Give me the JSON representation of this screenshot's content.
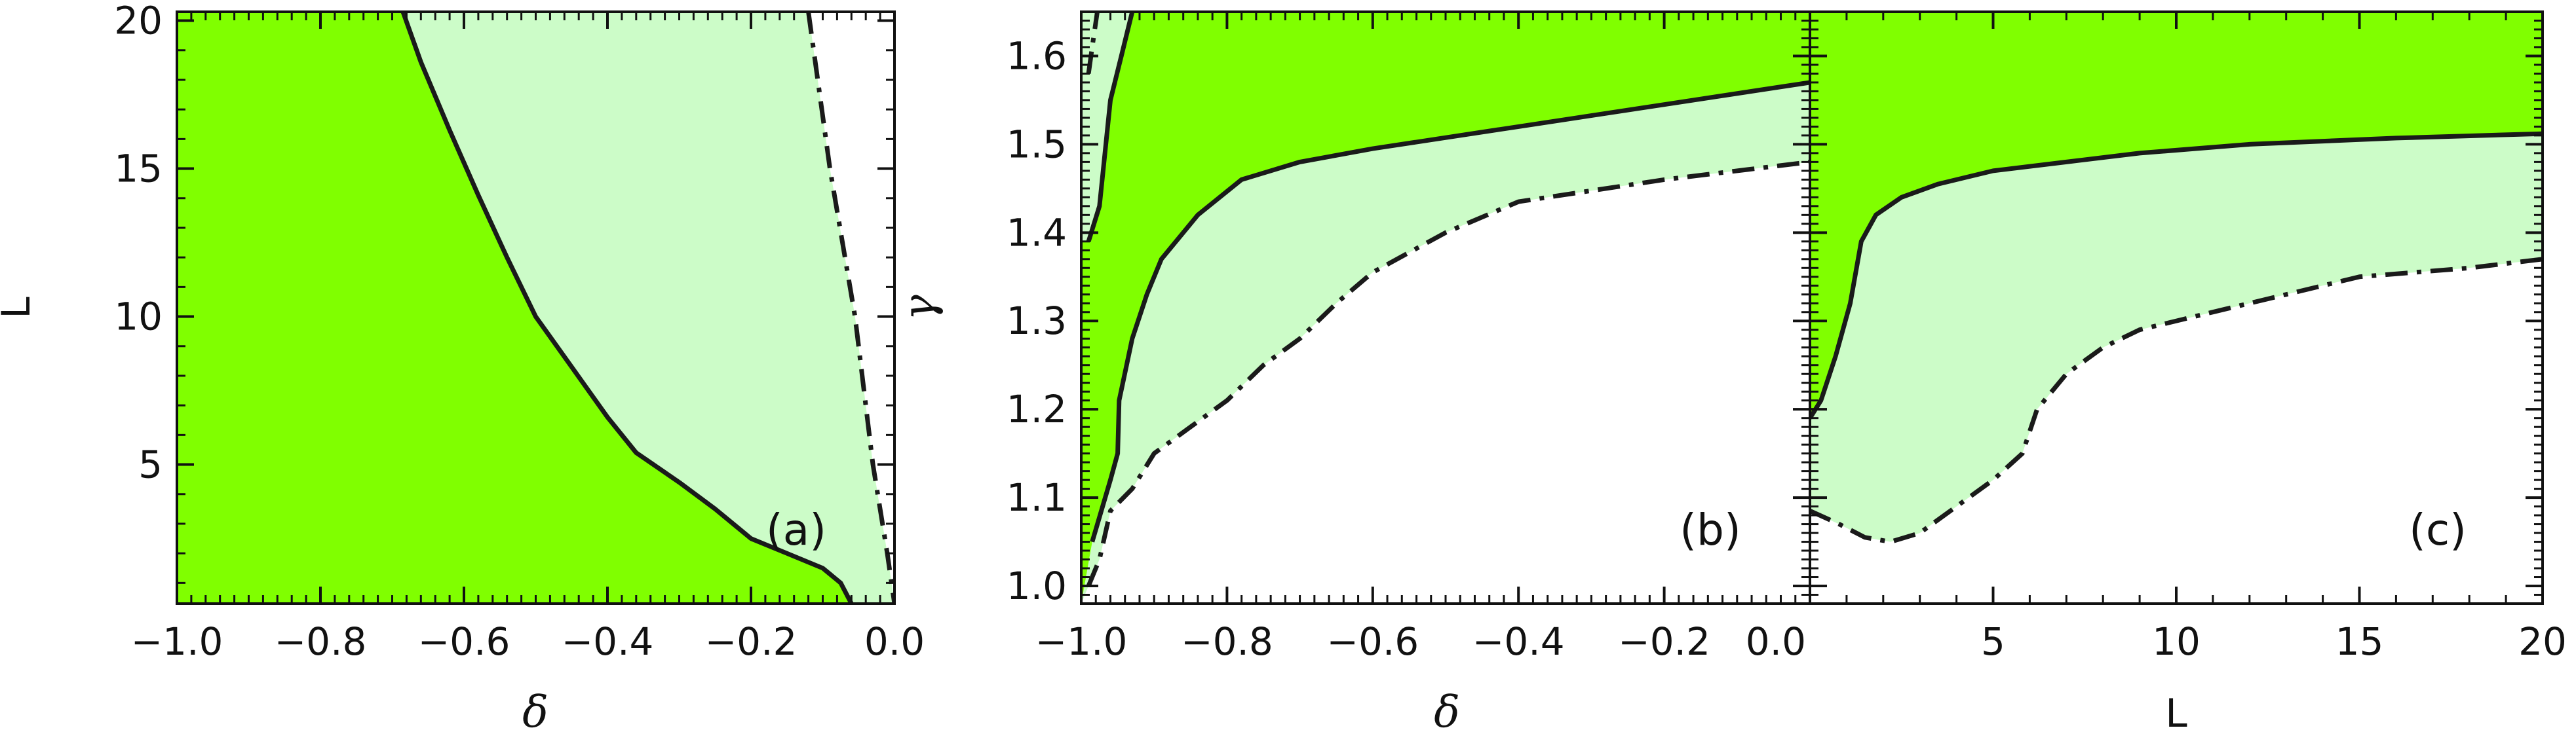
{
  "colors": {
    "dark_green": "#80ff00",
    "light_green": "#ccfcc8",
    "curve": "#1a1a1a",
    "axis": "#111111",
    "background": "#ffffff"
  },
  "chart_data": [
    {
      "type": "area",
      "panel_label": "(a)",
      "xlabel": "δ",
      "ylabel": "L",
      "xlim": [
        -1.0,
        0.0
      ],
      "ylim": [
        0.3,
        20.3
      ],
      "x_ticks": [
        -1.0,
        -0.8,
        -0.6,
        -0.4,
        -0.2,
        0.0
      ],
      "x_tick_labels": [
        "−1.0",
        "−0.8",
        "−0.6",
        "−0.4",
        "−0.2",
        "0.0"
      ],
      "y_ticks": [
        5,
        10,
        15,
        20
      ],
      "y_tick_labels": [
        "5",
        "10",
        "15",
        "20"
      ],
      "regions": [
        {
          "fill": "dark_green",
          "bounded": "left of solid curve"
        },
        {
          "fill": "light_green",
          "bounded": "between solid and dash-dot curves"
        }
      ],
      "series": [
        {
          "style": "solid",
          "points": [
            [
              -0.685,
              20.3
            ],
            [
              -0.66,
              18.6
            ],
            [
              -0.62,
              16.3
            ],
            [
              -0.58,
              14.1
            ],
            [
              -0.54,
              12.0
            ],
            [
              -0.5,
              10.0
            ],
            [
              -0.45,
              8.3
            ],
            [
              -0.4,
              6.6
            ],
            [
              -0.36,
              5.4
            ],
            [
              -0.3,
              4.4
            ],
            [
              -0.25,
              3.5
            ],
            [
              -0.22,
              2.9
            ],
            [
              -0.2,
              2.5
            ],
            [
              -0.15,
              2.0
            ],
            [
              -0.1,
              1.5
            ],
            [
              -0.075,
              1.0
            ],
            [
              -0.06,
              0.3
            ]
          ]
        },
        {
          "style": "dash-dot",
          "points": [
            [
              -0.12,
              20.3
            ],
            [
              -0.09,
              15.0
            ],
            [
              -0.055,
              10.0
            ],
            [
              -0.03,
              5.0
            ],
            [
              -0.01,
              2.0
            ],
            [
              0.0,
              0.3
            ]
          ]
        }
      ]
    },
    {
      "type": "area",
      "panel_label": "(b)",
      "xlabel": "δ",
      "ylabel": "γ",
      "xlim": [
        -1.0,
        0.0
      ],
      "ylim": [
        0.98,
        1.65
      ],
      "x_ticks": [
        -1.0,
        -0.8,
        -0.6,
        -0.4,
        -0.2,
        0.0
      ],
      "x_tick_labels": [
        "−1.0",
        "−0.8",
        "−0.6",
        "−0.4",
        "−0.2",
        "0.0"
      ],
      "y_ticks": [
        1.0,
        1.1,
        1.2,
        1.3,
        1.4,
        1.5,
        1.6
      ],
      "y_tick_labels": [
        "1.0",
        "1.1",
        "1.2",
        "1.3",
        "1.4",
        "1.5",
        "1.6"
      ],
      "regions": [
        {
          "fill": "dark_green",
          "bounded": "above solid curve"
        },
        {
          "fill": "light_green",
          "bounded": "between solid and dash-dot curves"
        }
      ],
      "series": [
        {
          "style": "solid",
          "points": [
            [
              -0.985,
              1.05
            ],
            [
              -0.96,
              1.12
            ],
            [
              -0.95,
              1.15
            ],
            [
              -0.948,
              1.21
            ],
            [
              -0.93,
              1.28
            ],
            [
              -0.91,
              1.33
            ],
            [
              -0.89,
              1.37
            ],
            [
              -0.84,
              1.42
            ],
            [
              -0.78,
              1.46
            ],
            [
              -0.7,
              1.48
            ],
            [
              -0.6,
              1.495
            ],
            [
              -0.4,
              1.52
            ],
            [
              -0.2,
              1.545
            ],
            [
              0.0,
              1.57
            ]
          ]
        },
        {
          "style": "solid",
          "points": [
            [
              -0.99,
              1.39
            ],
            [
              -0.975,
              1.43
            ],
            [
              -0.96,
              1.55
            ],
            [
              -0.945,
              1.6
            ],
            [
              -0.93,
              1.65
            ]
          ]
        },
        {
          "style": "dash-dot",
          "points": [
            [
              -0.99,
              1.0
            ],
            [
              -0.975,
              1.03
            ],
            [
              -0.96,
              1.085
            ],
            [
              -0.93,
              1.11
            ],
            [
              -0.9,
              1.15
            ],
            [
              -0.85,
              1.18
            ],
            [
              -0.8,
              1.21
            ],
            [
              -0.75,
              1.25
            ],
            [
              -0.7,
              1.28
            ],
            [
              -0.65,
              1.32
            ],
            [
              -0.6,
              1.355
            ],
            [
              -0.5,
              1.4
            ],
            [
              -0.4,
              1.435
            ],
            [
              -0.2,
              1.46
            ],
            [
              0.0,
              1.48
            ]
          ]
        },
        {
          "style": "dash-dot",
          "points": [
            [
              -0.99,
              1.58
            ],
            [
              -0.985,
              1.61
            ],
            [
              -0.978,
              1.65
            ]
          ]
        }
      ]
    },
    {
      "type": "area",
      "panel_label": "(c)",
      "xlabel": "L",
      "ylabel": "",
      "xlim": [
        0,
        20
      ],
      "ylim": [
        0.98,
        1.65
      ],
      "x_ticks": [
        0,
        5,
        10,
        15,
        20
      ],
      "x_tick_labels": [
        "",
        "5",
        "10",
        "15",
        "20"
      ],
      "regions": [
        {
          "fill": "dark_green",
          "bounded": "above solid curve"
        },
        {
          "fill": "light_green",
          "bounded": "between solid and dash-dot curves"
        }
      ],
      "series": [
        {
          "style": "solid",
          "points": [
            [
              0.0,
              1.19
            ],
            [
              0.3,
              1.21
            ],
            [
              0.7,
              1.26
            ],
            [
              1.1,
              1.32
            ],
            [
              1.4,
              1.39
            ],
            [
              1.8,
              1.42
            ],
            [
              2.5,
              1.44
            ],
            [
              3.5,
              1.455
            ],
            [
              5.0,
              1.47
            ],
            [
              7.0,
              1.48
            ],
            [
              9.0,
              1.49
            ],
            [
              12.0,
              1.5
            ],
            [
              16.0,
              1.507
            ],
            [
              20.0,
              1.512
            ]
          ]
        },
        {
          "style": "dash-dot",
          "points": [
            [
              0.0,
              1.085
            ],
            [
              0.8,
              1.07
            ],
            [
              1.5,
              1.055
            ],
            [
              2.2,
              1.05
            ],
            [
              3.0,
              1.06
            ],
            [
              4.0,
              1.09
            ],
            [
              5.0,
              1.12
            ],
            [
              5.8,
              1.15
            ],
            [
              6.2,
              1.2
            ],
            [
              7.0,
              1.24
            ],
            [
              8.0,
              1.27
            ],
            [
              9.0,
              1.29
            ],
            [
              11.0,
              1.31
            ],
            [
              13.0,
              1.33
            ],
            [
              15.0,
              1.35
            ],
            [
              18.0,
              1.36
            ],
            [
              20.0,
              1.37
            ]
          ]
        }
      ]
    }
  ]
}
